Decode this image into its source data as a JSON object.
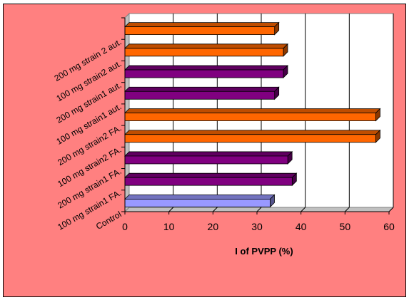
{
  "colors": {
    "chart_area": "#ff8080",
    "plot_area": "#ffffff",
    "gridline": "#000000",
    "orange": "#ff6600",
    "purple": "#800080",
    "lavender": "#9999ff"
  },
  "chart_data": {
    "type": "bar",
    "orientation": "horizontal",
    "style": "3d",
    "title": "",
    "xlabel": "I of PVPP (%)",
    "ylabel": "",
    "xlim": [
      0,
      60
    ],
    "xticks": [
      0,
      10,
      20,
      30,
      40,
      50,
      60
    ],
    "grid": true,
    "legend": "none",
    "visible_category_labels": [
      "Control",
      "100 mg strain1 FA.",
      "200 mg strain1 FA.",
      "100 mg strain2 FA.",
      "200 mg strain2 FA.",
      "100 mg strain1 aut.",
      "200 mg strain1 aut.",
      "100 mg strain2 aut.",
      "200 mg strain 2 aut."
    ],
    "bars": [
      {
        "value": 33,
        "color": "lavender"
      },
      {
        "value": 38,
        "color": "purple"
      },
      {
        "value": 37,
        "color": "purple"
      },
      {
        "value": 57,
        "color": "orange"
      },
      {
        "value": 57,
        "color": "orange"
      },
      {
        "value": 34,
        "color": "purple"
      },
      {
        "value": 36,
        "color": "purple"
      },
      {
        "value": 36,
        "color": "orange"
      },
      {
        "value": 34,
        "color": "orange"
      }
    ]
  }
}
